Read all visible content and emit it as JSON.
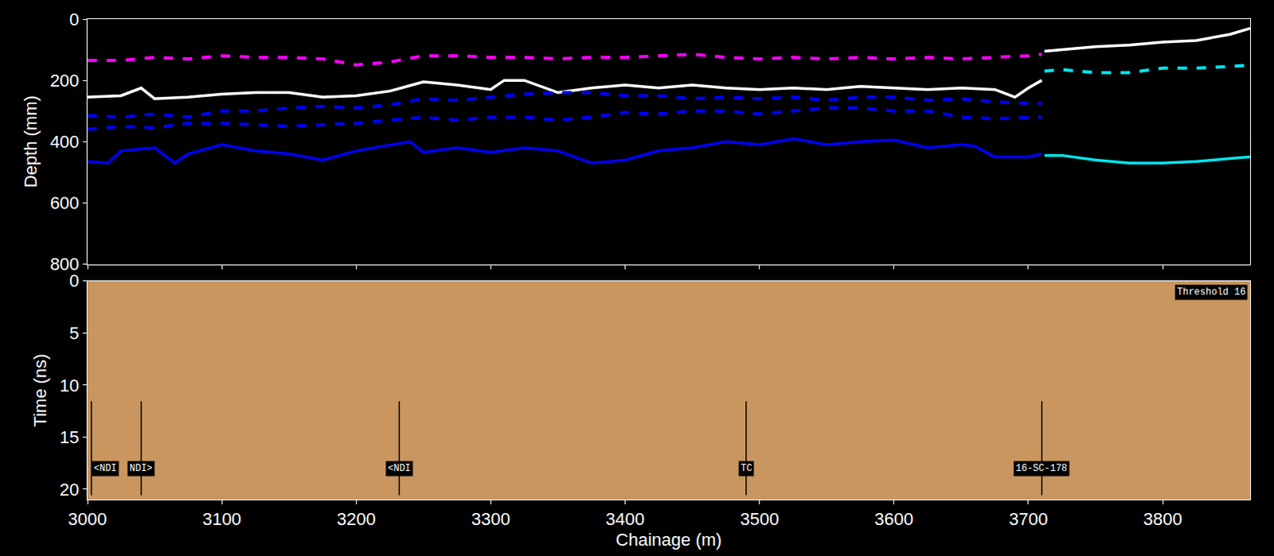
{
  "chart_data": [
    {
      "type": "line",
      "ylabel": "Depth (mm)",
      "xlim": [
        3000,
        3865
      ],
      "xticks": [
        3000,
        3100,
        3200,
        3300,
        3400,
        3500,
        3600,
        3700,
        3800
      ],
      "ylim": [
        800,
        0
      ],
      "yticks": [
        0,
        200,
        400,
        600,
        800
      ],
      "tick_labels": "y",
      "series": [
        {
          "color": "#ff00ff",
          "line_style": "dashed",
          "x": [
            3000,
            3025,
            3050,
            3075,
            3100,
            3125,
            3150,
            3175,
            3200,
            3225,
            3250,
            3275,
            3300,
            3325,
            3350,
            3375,
            3400,
            3425,
            3450,
            3475,
            3500,
            3525,
            3550,
            3575,
            3600,
            3625,
            3650,
            3675,
            3700,
            3710
          ],
          "values": [
            135,
            135,
            125,
            130,
            120,
            125,
            125,
            130,
            150,
            140,
            120,
            120,
            125,
            125,
            130,
            125,
            125,
            120,
            115,
            125,
            130,
            125,
            130,
            125,
            130,
            125,
            130,
            125,
            120,
            115
          ]
        },
        {
          "color": "#ffffff",
          "line_style": "solid",
          "x": [
            3000,
            3025,
            3040,
            3050,
            3075,
            3100,
            3125,
            3150,
            3175,
            3200,
            3225,
            3250,
            3275,
            3300,
            3310,
            3325,
            3350,
            3375,
            3400,
            3425,
            3450,
            3475,
            3500,
            3525,
            3550,
            3575,
            3600,
            3625,
            3650,
            3675,
            3690,
            3700,
            3710
          ],
          "values": [
            255,
            250,
            225,
            260,
            255,
            245,
            240,
            240,
            255,
            250,
            235,
            205,
            215,
            230,
            200,
            200,
            240,
            225,
            215,
            225,
            215,
            225,
            230,
            225,
            230,
            220,
            225,
            230,
            225,
            230,
            255,
            225,
            200
          ]
        },
        {
          "color": "#ffffff",
          "line_style": "solid",
          "x": [
            3712,
            3725,
            3750,
            3775,
            3800,
            3825,
            3850,
            3865
          ],
          "values": [
            105,
            100,
            90,
            85,
            75,
            70,
            50,
            30
          ]
        },
        {
          "color": "#0000ff",
          "line_style": "dashed",
          "x": [
            3000,
            3025,
            3050,
            3075,
            3100,
            3125,
            3150,
            3175,
            3200,
            3225,
            3250,
            3275,
            3300,
            3325,
            3350,
            3375,
            3400,
            3425,
            3450,
            3475,
            3500,
            3525,
            3550,
            3575,
            3600,
            3625,
            3650,
            3675,
            3700,
            3710
          ],
          "values": [
            315,
            320,
            310,
            320,
            300,
            300,
            290,
            285,
            290,
            280,
            260,
            265,
            255,
            245,
            240,
            240,
            250,
            250,
            260,
            255,
            260,
            255,
            265,
            255,
            255,
            265,
            260,
            270,
            275,
            275
          ]
        },
        {
          "color": "#0000ff",
          "line_style": "dashed",
          "x": [
            3000,
            3025,
            3050,
            3075,
            3100,
            3125,
            3150,
            3175,
            3200,
            3225,
            3250,
            3275,
            3300,
            3325,
            3350,
            3375,
            3400,
            3425,
            3450,
            3475,
            3500,
            3525,
            3550,
            3575,
            3600,
            3625,
            3650,
            3675,
            3700,
            3710
          ],
          "values": [
            360,
            350,
            355,
            340,
            340,
            345,
            350,
            345,
            340,
            330,
            320,
            330,
            320,
            320,
            330,
            320,
            305,
            310,
            300,
            300,
            310,
            300,
            290,
            290,
            300,
            300,
            320,
            325,
            320,
            320
          ]
        },
        {
          "color": "#0000ff",
          "line_style": "solid",
          "x": [
            3000,
            3015,
            3025,
            3050,
            3065,
            3075,
            3100,
            3125,
            3150,
            3175,
            3200,
            3225,
            3240,
            3250,
            3275,
            3300,
            3325,
            3350,
            3375,
            3400,
            3425,
            3450,
            3475,
            3500,
            3525,
            3550,
            3575,
            3600,
            3625,
            3650,
            3660,
            3675,
            3700,
            3710
          ],
          "values": [
            465,
            470,
            430,
            420,
            470,
            440,
            410,
            430,
            440,
            460,
            430,
            410,
            400,
            435,
            420,
            435,
            420,
            430,
            470,
            460,
            430,
            420,
            400,
            410,
            390,
            410,
            400,
            395,
            420,
            410,
            415,
            450,
            450,
            440
          ]
        },
        {
          "color": "#00e5ee",
          "line_style": "dashed",
          "x": [
            3712,
            3725,
            3750,
            3775,
            3800,
            3825,
            3850,
            3865
          ],
          "values": [
            170,
            165,
            175,
            175,
            160,
            160,
            155,
            150
          ]
        },
        {
          "color": "#00e5ee",
          "line_style": "solid",
          "x": [
            3712,
            3725,
            3750,
            3775,
            3800,
            3825,
            3850,
            3865
          ],
          "values": [
            445,
            445,
            460,
            470,
            470,
            465,
            455,
            450
          ]
        }
      ]
    },
    {
      "type": "radargram",
      "xlabel": "Chainage (m)",
      "ylabel": "Time (ns)",
      "xlim": [
        3000,
        3865
      ],
      "xticks": [
        3000,
        3100,
        3200,
        3300,
        3400,
        3500,
        3600,
        3700,
        3800
      ],
      "ylim": [
        21,
        0
      ],
      "yticks": [
        0,
        5,
        10,
        15,
        20
      ],
      "color": "#c9965f",
      "annotation": "Threshold 16",
      "markers": [
        {
          "x": 3003,
          "label": "<NDI"
        },
        {
          "x": 3040,
          "label": "NDI>"
        },
        {
          "x": 3232,
          "label": "<NDI"
        },
        {
          "x": 3490,
          "label": "TC"
        },
        {
          "x": 3710,
          "label": "16-SC-178"
        }
      ]
    }
  ]
}
